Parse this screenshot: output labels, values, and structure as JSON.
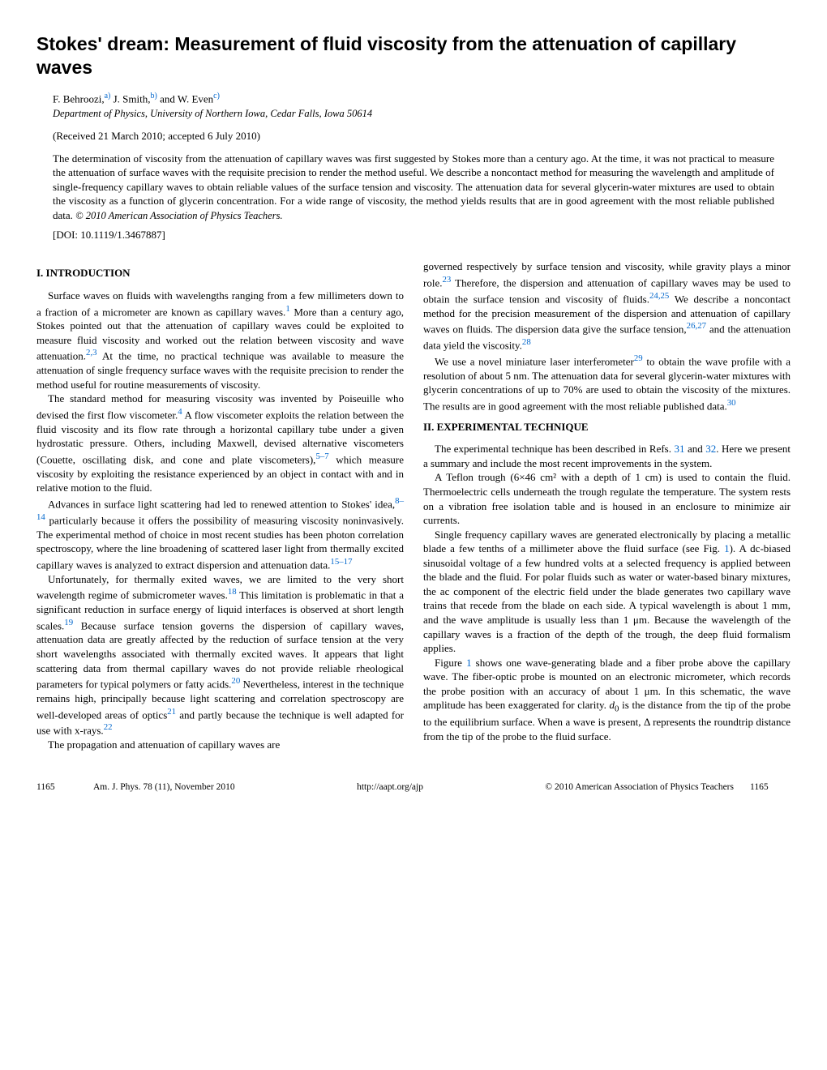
{
  "title": "Stokes' dream: Measurement of fluid viscosity from the attenuation of capillary waves",
  "authors": {
    "a1_name": "F. Behroozi,",
    "a1_sup": "a)",
    "a2_name": " J. Smith,",
    "a2_sup": "b)",
    "a3_name": " and W. Even",
    "a3_sup": "c)"
  },
  "affiliation": "Department of Physics, University of Northern Iowa, Cedar Falls, Iowa 50614",
  "received": "(Received 21 March 2010; accepted 6 July 2010)",
  "abstract": "The determination of viscosity from the attenuation of capillary waves was first suggested by Stokes more than a century ago. At the time, it was not practical to measure the attenuation of surface waves with the requisite precision to render the method useful. We describe a noncontact method for measuring the wavelength and amplitude of single-frequency capillary waves to obtain reliable values of the surface tension and viscosity. The attenuation data for several glycerin-water mixtures are used to obtain the viscosity as a function of glycerin concentration. For a wide range of viscosity, the method yields results that are in good agreement with the most reliable published data. ",
  "copyright": "© 2010 American Association of Physics Teachers.",
  "doi": "[DOI: 10.1119/1.3467887]",
  "section1_heading": "I. INTRODUCTION",
  "section2_heading": "II. EXPERIMENTAL TECHNIQUE",
  "body": {
    "p1a": "Surface waves on fluids with wavelengths ranging from a few millimeters down to a fraction of a micrometer are known as capillary waves.",
    "p1_ref1": "1",
    "p1b": " More than a century ago, Stokes pointed out that the attenuation of capillary waves could be exploited to measure fluid viscosity and worked out the relation between viscosity and wave attenuation.",
    "p1_ref2": "2,3",
    "p1c": " At the time, no practical technique was available to measure the attenuation of single frequency surface waves with the requisite precision to render the method useful for routine measurements of viscosity.",
    "p2a": "The standard method for measuring viscosity was invented by Poiseuille who devised the first flow viscometer.",
    "p2_ref1": "4",
    "p2b": " A flow viscometer exploits the relation between the fluid viscosity and its flow rate through a horizontal capillary tube under a given hydrostatic pressure. Others, including Maxwell, devised alternative viscometers (Couette, oscillating disk, and cone and plate viscometers),",
    "p2_ref2": "5–7",
    "p2c": " which measure viscosity by exploiting the resistance experienced by an object in contact with and in relative motion to the fluid.",
    "p3a": "Advances in surface light scattering had led to renewed attention to Stokes' idea,",
    "p3_ref1": "8–14",
    "p3b": " particularly because it offers the possibility of measuring viscosity noninvasively. The experimental method of choice in most recent studies has been photon correlation spectroscopy, where the line broadening of scattered laser light from thermally excited capillary waves is analyzed to extract dispersion and attenuation data.",
    "p3_ref2": "15–17",
    "p4a": "Unfortunately, for thermally exited waves, we are limited to the very short wavelength regime of submicrometer waves.",
    "p4_ref1": "18",
    "p4b": " This limitation is problematic in that a significant reduction in surface energy of liquid interfaces is observed at short length scales.",
    "p4_ref2": "19",
    "p4c": " Because surface tension governs the dispersion of capillary waves, attenuation data are greatly affected by the reduction of surface tension at the very short wavelengths associated with thermally excited waves. It appears that light scattering data from thermal capillary waves do not provide reliable rheological parameters for typical polymers or fatty acids.",
    "p4_ref3": "20",
    "p4d": " Nevertheless, interest in the technique remains high, principally because light scattering and correlation spectroscopy are well-developed areas of optics",
    "p4_ref4": "21",
    "p4e": " and partly because the technique is well adapted for use with x-rays.",
    "p4_ref5": "22",
    "p5a": "The propagation and attenuation of capillary waves are",
    "p5b": "governed respectively by surface tension and viscosity, while gravity plays a minor role.",
    "p5_ref1": "23",
    "p5c": " Therefore, the dispersion and attenuation of capillary waves may be used to obtain the surface tension and viscosity of fluids.",
    "p5_ref2": "24,25",
    "p5d": " We describe a noncontact method for the precision measurement of the dispersion and attenuation of capillary waves on fluids. The dispersion data give the surface tension,",
    "p5_ref3": "26,27",
    "p5e": " and the attenuation data yield the viscosity.",
    "p5_ref4": "28",
    "p6a": "We use a novel miniature laser interferometer",
    "p6_ref1": "29",
    "p6b": " to obtain the wave profile with a resolution of about 5 nm. The attenuation data for several glycerin-water mixtures with glycerin concentrations of up to 70% are used to obtain the viscosity of the mixtures. The results are in good agreement with the most reliable published data.",
    "p6_ref2": "30",
    "p7a": "The experimental technique has been described in Refs. ",
    "p7_ref1": "31",
    "p7b": " and ",
    "p7_ref2": "32",
    "p7c": ". Here we present a summary and include the most recent improvements in the system.",
    "p8": "A Teflon trough (6×46 cm² with a depth of 1 cm) is used to contain the fluid. Thermoelectric cells underneath the trough regulate the temperature. The system rests on a vibration free isolation table and is housed in an enclosure to minimize air currents.",
    "p9a": "Single frequency capillary waves are generated electronically by placing a metallic blade a few tenths of a millimeter above the fluid surface (see Fig. ",
    "p9_ref1": "1",
    "p9b": "). A dc-biased sinusoidal voltage of a few hundred volts at a selected frequency is applied between the blade and the fluid. For polar fluids such as water or water-based binary mixtures, the ac component of the electric field under the blade generates two capillary wave trains that recede from the blade on each side. A typical wavelength is about 1 mm, and the wave amplitude is usually less than 1 μm. Because the wavelength of the capillary waves is a fraction of the depth of the trough, the deep fluid formalism applies.",
    "p10a": "Figure ",
    "p10_ref1": "1",
    "p10b": " shows one wave-generating blade and a fiber probe above the capillary wave. The fiber-optic probe is mounted on an electronic micrometer, which records the probe position with an accuracy of about 1 μm. In this schematic, the wave amplitude has been exaggerated for clarity. ",
    "p10c": " is the distance from the tip of the probe to the equilibrium surface. When a wave is present, Δ represents the roundtrip distance from the tip of the probe to the fluid surface."
  },
  "footer": {
    "page_left": "1165",
    "journal": "Am. J. Phys. 78 (11), November 2010",
    "url": "http://aapt.org/ajp",
    "copyright": "© 2010 American Association of Physics Teachers",
    "page_right": "1165"
  }
}
